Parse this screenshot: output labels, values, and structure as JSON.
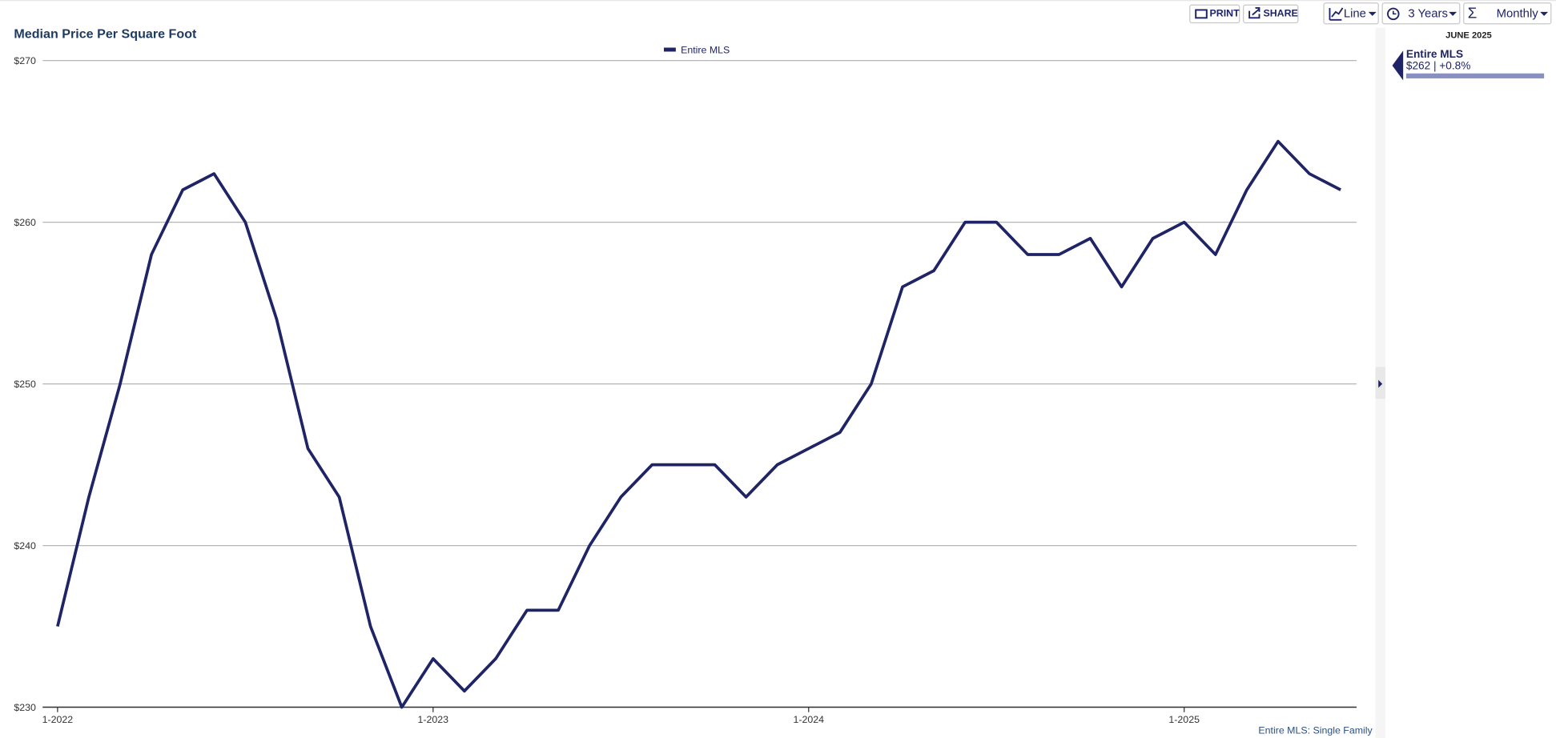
{
  "chart_data": {
    "type": "line",
    "title": "Median Price Per Square Foot",
    "categories": [
      "1-2022",
      null,
      null,
      null,
      null,
      null,
      null,
      null,
      null,
      null,
      null,
      null,
      "1-2023",
      null,
      null,
      null,
      null,
      null,
      null,
      null,
      null,
      null,
      null,
      null,
      "1-2024",
      null,
      null,
      null,
      null,
      null,
      null,
      null,
      null,
      null,
      null,
      null,
      "1-2025",
      null,
      null,
      null,
      null,
      null
    ],
    "series": [
      {
        "name": "Entire MLS",
        "color": "#1f2466",
        "values": [
          235,
          243,
          250,
          258,
          262,
          263,
          260,
          254,
          246,
          243,
          235,
          230,
          233,
          231,
          233,
          236,
          236,
          240,
          243,
          245,
          245,
          245,
          243,
          245,
          246,
          247,
          250,
          256,
          257,
          260,
          260,
          258,
          258,
          259,
          256,
          259,
          260,
          258,
          262,
          265,
          263,
          262
        ]
      }
    ],
    "ylim": [
      230,
      270
    ],
    "yticks": [
      {
        "value": 230,
        "label": "$230"
      },
      {
        "value": 240,
        "label": "$240"
      },
      {
        "value": 250,
        "label": "$250"
      },
      {
        "value": 260,
        "label": "$260"
      },
      {
        "value": 270,
        "label": "$270"
      }
    ],
    "grid": true,
    "legend": "top"
  },
  "toolbar": {
    "print": "PRINT",
    "share": "SHARE",
    "chart_type": "Line",
    "range": "3 Years",
    "interval": "Monthly"
  },
  "sidebar": {
    "date": "JUNE 2025",
    "series": "Entire MLS",
    "summary": "$262 | +0.8%"
  },
  "footer": "Entire MLS: Single Family"
}
